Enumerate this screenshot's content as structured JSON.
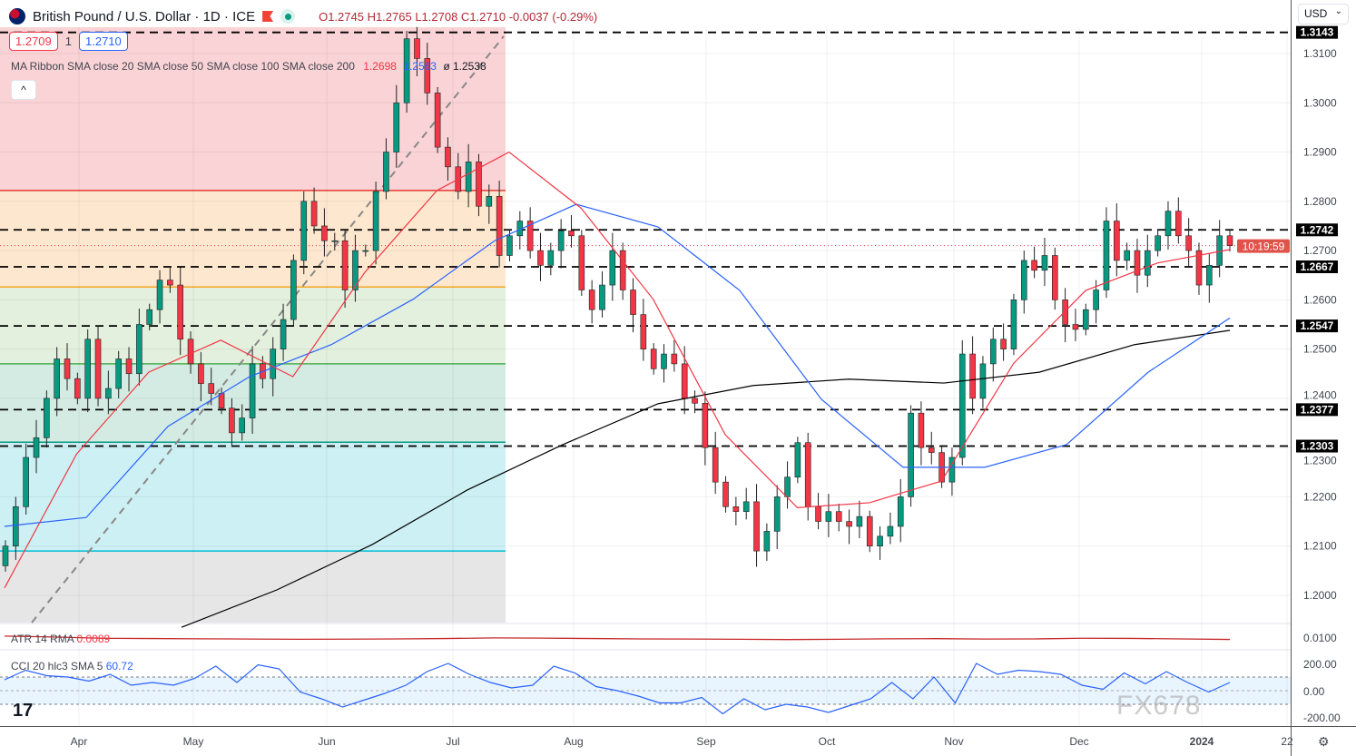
{
  "header": {
    "title": "British Pound / U.S. Dollar · 1D · ICE",
    "ohlc": "O1.2745 H1.2765 L1.2708 C1.2710 -0.0037 (-0.29%)"
  },
  "bid": "1.2709",
  "spread": "1",
  "ask": "1.2710",
  "ribbon": {
    "label": "MA Ribbon SMA close 20 SMA close 50 SMA close 100 SMA close 200",
    "v1": "1.2698",
    "v2": "1.2563",
    "v3": "ø 1.2538"
  },
  "currency": "USD",
  "atr": {
    "label": "ATR 14 RMA",
    "value": "0.0089",
    "axis": "0.0100"
  },
  "cci": {
    "label": "CCI 20 hlc3 SMA 5",
    "value": "60.72",
    "axis": [
      "200.00",
      "0.00",
      "-200.00"
    ]
  },
  "watermark": "FX678",
  "colors": {
    "up": "#089981",
    "down": "#f23645",
    "sma20": "#f23645",
    "sma50": "#2962ff",
    "sma200": "#000000",
    "fib": [
      "#f9d3d5",
      "#fde7cf",
      "#e3f0dd",
      "#d3ebe2",
      "#ccf0f3",
      "#e6e6e6"
    ],
    "fibline": [
      "#e53935",
      "#f5a623",
      "#4caf50",
      "#089981",
      "#00bcd4"
    ]
  },
  "chart_data": {
    "type": "candlestick",
    "title": "British Pound / U.S. Dollar · 1D · ICE",
    "x_ticks": [
      "Apr",
      "May",
      "Jun",
      "Jul",
      "Aug",
      "Sep",
      "Oct",
      "Nov",
      "Dec",
      "2024",
      "22"
    ],
    "y_ticks": [
      "1.3100",
      "1.3000",
      "1.2900",
      "1.2800",
      "1.2700",
      "1.2600",
      "1.2500",
      "1.2400",
      "1.2300",
      "1.2200",
      "1.2100",
      "1.2000"
    ],
    "ylim": [
      1.1935,
      1.3185
    ],
    "closes": [
      1.21,
      1.218,
      1.228,
      1.232,
      1.24,
      1.248,
      1.244,
      1.24,
      1.252,
      1.24,
      1.242,
      1.248,
      1.245,
      1.255,
      1.258,
      1.264,
      1.263,
      1.252,
      1.247,
      1.243,
      1.241,
      1.238,
      1.233,
      1.236,
      1.247,
      1.244,
      1.25,
      1.256,
      1.268,
      1.28,
      1.275,
      1.272,
      1.272,
      1.262,
      1.27,
      1.27,
      1.282,
      1.29,
      1.3,
      1.313,
      1.309,
      1.302,
      1.291,
      1.287,
      1.282,
      1.288,
      1.279,
      1.281,
      1.269,
      1.273,
      1.276,
      1.27,
      1.267,
      1.27,
      1.274,
      1.273,
      1.262,
      1.258,
      1.263,
      1.27,
      1.262,
      1.257,
      1.25,
      1.246,
      1.249,
      1.247,
      1.24,
      1.239,
      1.23,
      1.223,
      1.218,
      1.217,
      1.219,
      1.209,
      1.213,
      1.22,
      1.224,
      1.231,
      1.218,
      1.215,
      1.217,
      1.215,
      1.214,
      1.216,
      1.21,
      1.212,
      1.214,
      1.22,
      1.237,
      1.23,
      1.229,
      1.223,
      1.228,
      1.249,
      1.24,
      1.247,
      1.252,
      1.25,
      1.26,
      1.268,
      1.266,
      1.269,
      1.26,
      1.255,
      1.254,
      1.258,
      1.262,
      1.276,
      1.268,
      1.27,
      1.265,
      1.27,
      1.273,
      1.278,
      1.273,
      1.27,
      1.263,
      1.267,
      1.273,
      1.271
    ],
    "sma20": [
      1.2015,
      1.2287,
      1.2453,
      1.2518,
      1.2444,
      1.2656,
      1.2822,
      1.29,
      1.2786,
      1.2601,
      1.2326,
      1.2178,
      1.2188,
      1.2232,
      1.2471,
      1.2619,
      1.2675,
      1.2702
    ],
    "sma50": [
      1.214,
      1.2158,
      1.2343,
      1.2444,
      1.2509,
      1.2601,
      1.272,
      1.2794,
      1.2748,
      1.2619,
      1.2398,
      1.226,
      1.226,
      1.2306,
      1.2453,
      1.2563
    ],
    "sma200": [
      1.1935,
      1.2011,
      1.2103,
      1.2214,
      1.2306,
      1.2389,
      1.2426,
      1.2439,
      1.2431,
      1.2453,
      1.2509,
      1.2538
    ],
    "levels": [
      {
        "price": 1.3143,
        "label": "1.3143"
      },
      {
        "price": 1.2742,
        "label": "1.2742"
      },
      {
        "price": 1.2667,
        "label": "1.2667"
      },
      {
        "price": 1.2547,
        "label": "1.2547"
      },
      {
        "price": 1.2377,
        "label": "1.2377"
      },
      {
        "price": 1.2303,
        "label": "1.2303"
      }
    ],
    "fib_levels": [
      1.3143,
      1.2822,
      1.2626,
      1.247,
      1.2311,
      1.209
    ],
    "current_price": 1.271,
    "countdown": "10:19:59",
    "atr_values": [
      0.0115,
      0.0108,
      0.0098,
      0.0096,
      0.0094,
      0.0092,
      0.009,
      0.0091,
      0.0093,
      0.0096,
      0.0101,
      0.0099,
      0.0096,
      0.0093,
      0.0092,
      0.009,
      0.0088,
      0.009,
      0.0094,
      0.0095,
      0.0092,
      0.0093,
      0.0098,
      0.0097,
      0.0093,
      0.0089
    ],
    "cci_values": [
      80,
      150,
      110,
      100,
      70,
      120,
      40,
      60,
      40,
      90,
      180,
      60,
      190,
      160,
      -10,
      -60,
      -120,
      -70,
      -20,
      40,
      140,
      200,
      120,
      60,
      20,
      40,
      180,
      130,
      30,
      0,
      -40,
      -90,
      -90,
      -50,
      -170,
      -60,
      -140,
      -100,
      -120,
      -160,
      -110,
      -60,
      60,
      -60,
      100,
      -90,
      200,
      120,
      150,
      140,
      120,
      40,
      10,
      130,
      50,
      140,
      60,
      -10,
      60
    ]
  }
}
